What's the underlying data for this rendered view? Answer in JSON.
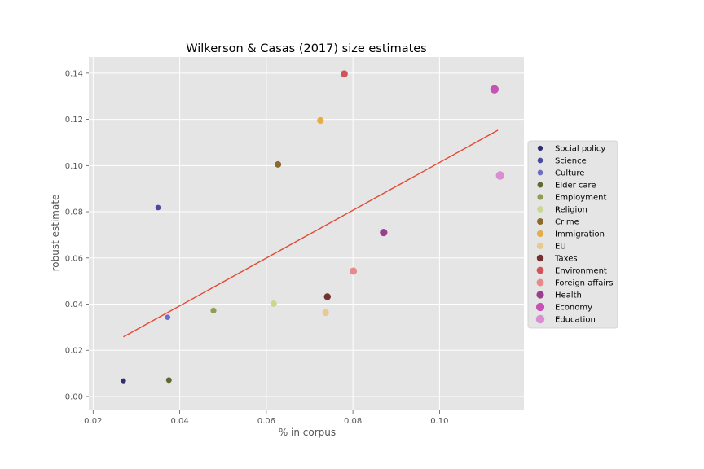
{
  "chart_data": {
    "type": "scatter",
    "title": "Wilkerson & Casas (2017) size estimates",
    "xlabel": "% in corpus",
    "ylabel": "robust estimate",
    "xlim": [
      0.019,
      0.1195
    ],
    "ylim": [
      -0.006,
      0.147
    ],
    "xticks": [
      0.02,
      0.04,
      0.06,
      0.08,
      0.1
    ],
    "xtick_labels": [
      "0.02",
      "0.04",
      "0.06",
      "0.08",
      "0.10"
    ],
    "yticks": [
      0.0,
      0.02,
      0.04,
      0.06,
      0.08,
      0.1,
      0.12,
      0.14
    ],
    "ytick_labels": [
      "0.00",
      "0.02",
      "0.04",
      "0.06",
      "0.08",
      "0.10",
      "0.12",
      "0.14"
    ],
    "grid": true,
    "legend_position": "right",
    "background_color": "#e5e5e5",
    "fit_line": {
      "x": [
        0.027,
        0.1135
      ],
      "y": [
        0.0258,
        0.1153
      ],
      "color": "#e24a33"
    },
    "series": [
      {
        "name": "Social policy",
        "x": 0.027,
        "y": 0.0068,
        "color": "#2f2f6e",
        "size": 4
      },
      {
        "name": "Science",
        "x": 0.035,
        "y": 0.0818,
        "color": "#4a4aa0",
        "size": 4.3
      },
      {
        "name": "Culture",
        "x": 0.0372,
        "y": 0.0343,
        "color": "#6b6ec8",
        "size": 4.3
      },
      {
        "name": "Elder care",
        "x": 0.0375,
        "y": 0.0071,
        "color": "#5c6b30",
        "size": 4.5
      },
      {
        "name": "Employment",
        "x": 0.0478,
        "y": 0.0372,
        "color": "#8c9e50",
        "size": 4.6
      },
      {
        "name": "Religion",
        "x": 0.0617,
        "y": 0.0402,
        "color": "#c9d890",
        "size": 5.0
      },
      {
        "name": "Crime",
        "x": 0.0627,
        "y": 0.1005,
        "color": "#8c6a2c",
        "size": 5.1
      },
      {
        "name": "Immigration",
        "x": 0.0725,
        "y": 0.1195,
        "color": "#e6ad47",
        "size": 5.3
      },
      {
        "name": "EU",
        "x": 0.0737,
        "y": 0.0363,
        "color": "#e9c98c",
        "size": 5.3
      },
      {
        "name": "Taxes",
        "x": 0.0741,
        "y": 0.0432,
        "color": "#733232",
        "size": 5.4
      },
      {
        "name": "Environment",
        "x": 0.078,
        "y": 0.1397,
        "color": "#d05458",
        "size": 5.6
      },
      {
        "name": "Foreign affairs",
        "x": 0.0801,
        "y": 0.0543,
        "color": "#e8898b",
        "size": 5.7
      },
      {
        "name": "Health",
        "x": 0.0871,
        "y": 0.071,
        "color": "#9c3e8e",
        "size": 5.9
      },
      {
        "name": "Economy",
        "x": 0.1127,
        "y": 0.133,
        "color": "#c553b5",
        "size": 6.6
      },
      {
        "name": "Education",
        "x": 0.114,
        "y": 0.0957,
        "color": "#d98ed0",
        "size": 6.7
      }
    ]
  }
}
